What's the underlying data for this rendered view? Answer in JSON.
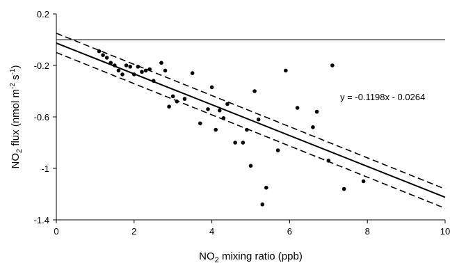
{
  "chart_data": {
    "type": "scatter",
    "title": "",
    "xlabel": {
      "pre": "NO",
      "sub": "2",
      "post": " mixing ratio (ppb)"
    },
    "ylabel": {
      "pre": "NO",
      "sub": "2",
      "mid": " flux (nmol m",
      "sup1": "-2",
      "mid2": " s",
      "sup2": "-1",
      "post": ")"
    },
    "xlim": [
      0,
      10
    ],
    "ylim": [
      -1.4,
      0.2
    ],
    "xticks": [
      0,
      2,
      4,
      6,
      8,
      10
    ],
    "yticks": [
      0.2,
      -0.2,
      -0.6,
      -1,
      -1.4
    ],
    "ytick_labels": [
      "0.2",
      "-0.2",
      "-0.6",
      "-1",
      "-1.4"
    ],
    "grid": false,
    "zero_line": 0,
    "points": [
      {
        "x": 1.1,
        "y": -0.09
      },
      {
        "x": 1.2,
        "y": -0.12
      },
      {
        "x": 1.3,
        "y": -0.14
      },
      {
        "x": 1.4,
        "y": -0.18
      },
      {
        "x": 1.5,
        "y": -0.2
      },
      {
        "x": 1.6,
        "y": -0.24
      },
      {
        "x": 1.7,
        "y": -0.27
      },
      {
        "x": 1.8,
        "y": -0.2
      },
      {
        "x": 1.9,
        "y": -0.21
      },
      {
        "x": 2.0,
        "y": -0.27
      },
      {
        "x": 2.1,
        "y": -0.21
      },
      {
        "x": 2.2,
        "y": -0.25
      },
      {
        "x": 2.3,
        "y": -0.24
      },
      {
        "x": 2.4,
        "y": -0.23
      },
      {
        "x": 2.5,
        "y": -0.32
      },
      {
        "x": 2.7,
        "y": -0.18
      },
      {
        "x": 2.8,
        "y": -0.24
      },
      {
        "x": 2.9,
        "y": -0.52
      },
      {
        "x": 3.0,
        "y": -0.44
      },
      {
        "x": 3.1,
        "y": -0.48
      },
      {
        "x": 3.3,
        "y": -0.46
      },
      {
        "x": 3.5,
        "y": -0.26
      },
      {
        "x": 3.7,
        "y": -0.65
      },
      {
        "x": 3.9,
        "y": -0.54
      },
      {
        "x": 4.0,
        "y": -0.37
      },
      {
        "x": 4.1,
        "y": -0.7
      },
      {
        "x": 4.2,
        "y": -0.55
      },
      {
        "x": 4.3,
        "y": -0.61
      },
      {
        "x": 4.4,
        "y": -0.5
      },
      {
        "x": 4.6,
        "y": -0.8
      },
      {
        "x": 4.8,
        "y": -0.8
      },
      {
        "x": 4.9,
        "y": -0.7
      },
      {
        "x": 5.0,
        "y": -0.98
      },
      {
        "x": 5.1,
        "y": -0.4
      },
      {
        "x": 5.2,
        "y": -0.62
      },
      {
        "x": 5.3,
        "y": -1.28
      },
      {
        "x": 5.4,
        "y": -1.15
      },
      {
        "x": 5.7,
        "y": -0.86
      },
      {
        "x": 5.9,
        "y": -0.24
      },
      {
        "x": 6.2,
        "y": -0.53
      },
      {
        "x": 6.6,
        "y": -0.68
      },
      {
        "x": 6.7,
        "y": -0.56
      },
      {
        "x": 7.0,
        "y": -0.94
      },
      {
        "x": 7.1,
        "y": -0.2
      },
      {
        "x": 7.4,
        "y": -1.16
      },
      {
        "x": 7.9,
        "y": -1.1
      }
    ],
    "regression": {
      "slope": -0.1198,
      "intercept": -0.0264
    },
    "confidence_band": {
      "upper": [
        0.05,
        -1.16
      ],
      "lower": [
        -0.1,
        -1.31
      ]
    },
    "annotations": [
      {
        "text": "y = -0.1198x - 0.0264",
        "x": 7.3,
        "y": -0.47
      }
    ]
  }
}
